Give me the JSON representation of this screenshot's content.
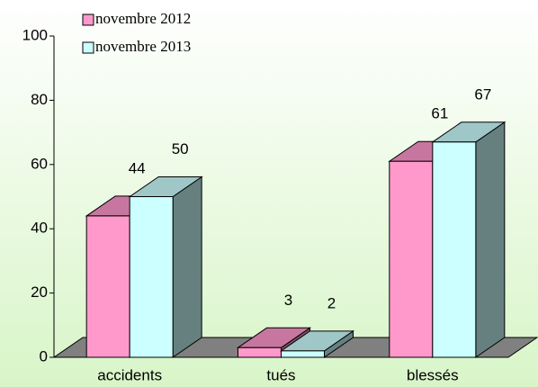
{
  "chart_data": {
    "type": "bar3d",
    "categories": [
      "accidents",
      "tués",
      "blessés"
    ],
    "series": [
      {
        "name": "novembre 2012",
        "color": "#ff99cc",
        "values": [
          44,
          3,
          61
        ]
      },
      {
        "name": "novembre 2013",
        "color": "#ccffff",
        "values": [
          50,
          2,
          67
        ]
      }
    ],
    "ylim": [
      0,
      100
    ],
    "yticks": [
      0,
      20,
      40,
      60,
      80,
      100
    ]
  }
}
